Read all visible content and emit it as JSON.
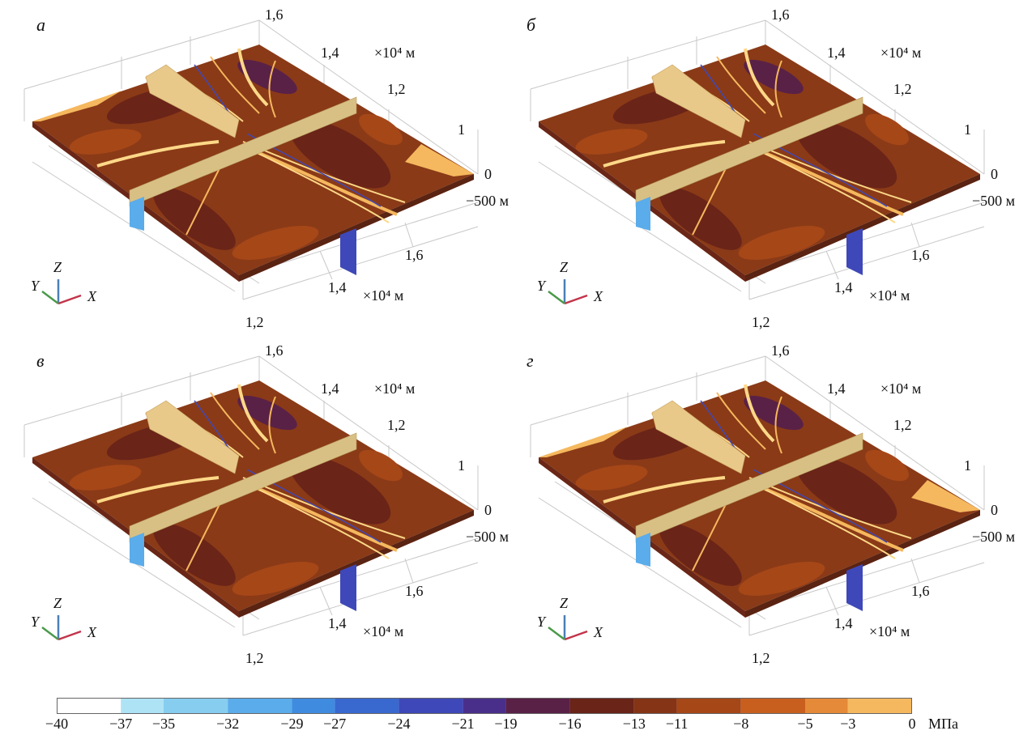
{
  "panels": [
    {
      "label": "а",
      "top_ticks": [
        "1,6",
        "1,4",
        "1,2",
        "1",
        "0"
      ],
      "top_unit": "×10⁴ м",
      "depth": "−500 м",
      "front_ticks": [
        "1,6",
        "1,4",
        "1,2"
      ],
      "front_unit": "×10⁴ м",
      "axes": {
        "x": "X",
        "y": "Y",
        "z": "Z"
      }
    },
    {
      "label": "б",
      "top_ticks": [
        "1,6",
        "1,4",
        "1,2",
        "1",
        "0"
      ],
      "top_unit": "×10⁴ м",
      "depth": "−500 м",
      "front_ticks": [
        "1,6",
        "1,4",
        "1,2"
      ],
      "front_unit": "×10⁴ м",
      "axes": {
        "x": "X",
        "y": "Y",
        "z": "Z"
      }
    },
    {
      "label": "в",
      "top_ticks": [
        "1,6",
        "1,4",
        "1,2",
        "1",
        "0"
      ],
      "top_unit": "×10⁴ м",
      "depth": "−500 м",
      "front_ticks": [
        "1,6",
        "1,4",
        "1,2"
      ],
      "front_unit": "×10⁴ м",
      "axes": {
        "x": "X",
        "y": "Y",
        "z": "Z"
      }
    },
    {
      "label": "г",
      "top_ticks": [
        "1,6",
        "1,4",
        "1,2",
        "1",
        "0"
      ],
      "top_unit": "×10⁴ м",
      "depth": "−500 м",
      "front_ticks": [
        "1,6",
        "1,4",
        "1,2"
      ],
      "front_unit": "×10⁴ м",
      "axes": {
        "x": "X",
        "y": "Y",
        "z": "Z"
      }
    }
  ],
  "colorbar": {
    "labels": [
      "−40",
      "−37",
      "−35",
      "−32",
      "−29",
      "−27",
      "−24",
      "−21",
      "−19",
      "−16",
      "−13",
      "−11",
      "−8",
      "−5",
      "−3",
      "0"
    ],
    "unit": "МПа",
    "colors": [
      "#ffffff",
      "#aee3f5",
      "#86cdf0",
      "#5aacea",
      "#3f8be0",
      "#3968cf",
      "#3f48b8",
      "#4a2f8a",
      "#5a2147",
      "#6a2418",
      "#853515",
      "#a64718",
      "#c95f1f",
      "#e58a38",
      "#f5b85e",
      "#fdd888"
    ]
  }
}
